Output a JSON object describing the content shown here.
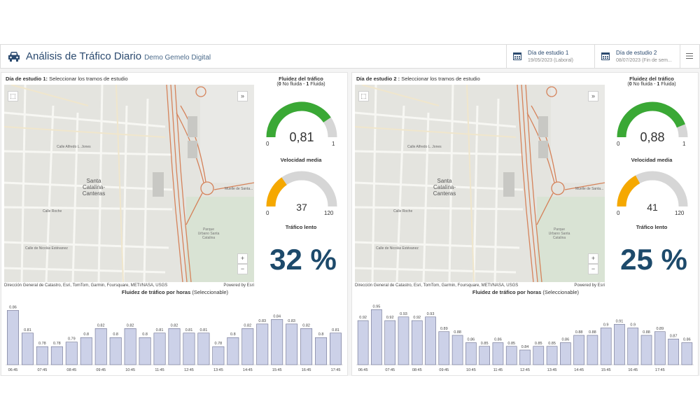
{
  "header": {
    "title": "Análisis de Tráfico Diario",
    "subtitle": "Demo Gemelo Digital",
    "date1_label": "Día de estudio 1",
    "date1_value": "19/05/2023 (Laboral)",
    "date2_label": "Día de estudio 2",
    "date2_value": "08/07/2023 (Fin de sem..."
  },
  "colors": {
    "accent": "#2b4a6f",
    "gauge_green": "#3aa835",
    "gauge_orange": "#f5a800",
    "gauge_track": "#d6d6d6",
    "bar_fill": "#ccd1e8",
    "bar_stroke": "#6b6f8e",
    "big_text": "#1d4a6b"
  },
  "panels": [
    {
      "title_bold": "Día de estudio 1:",
      "title_rest": " Seleccionar los tramos de estudio",
      "map_labels": {
        "district": "Santa\nCatalina-\nCanteras",
        "street1": "Calle Alfredo L. Jones",
        "street2": "Calle Roche",
        "street3": "Calle de Nicolás Estévanez",
        "park": "Parque\nUrbano Santa\nCatalina",
        "street4": "Muelle de Santa..."
      },
      "attribution": "Dirección General de Catastro, Esri, TomTom, Garmin, Foursquare, METI/NASA, USGS",
      "powered": "Powered by Esri",
      "fluidez_title": "Fluidez del tráfico",
      "fluidez_sub_no": "0",
      "fluidez_sub_no_txt": " No fluida - ",
      "fluidez_sub_si": "1",
      "fluidez_sub_si_txt": " Fluida)",
      "fluidez_value": "0,81",
      "fluidez_fraction": 0.81,
      "fluidez_min": "0",
      "fluidez_max": "1",
      "velocidad_title": "Velocidad media",
      "velocidad_value": "37",
      "velocidad_fraction": 0.308,
      "velocidad_min": "0",
      "velocidad_max": "120",
      "lento_title": "Tráfico lento",
      "lento_pct": "32 %",
      "chart_title_bold": "Fluidez de tráfico por horas",
      "chart_title_rest": " (Seleccionable)"
    },
    {
      "title_bold": "Día de estudio 2 :",
      "title_rest": " Seleccionar los tramos de estudio",
      "map_labels": {
        "district": "Santa\nCatalina-\nCanteras",
        "street1": "Calle Alfredo L. Jones",
        "street2": "Calle Roche",
        "street3": "Calle de Nicolás Estévanez",
        "park": "Parque\nUrbano Santa\nCatalina",
        "street4": "Muelle de Santa..."
      },
      "attribution": "Dirección General de Catastro, Esri, TomTom, Garmin, Foursquare, METI/NASA, USGS",
      "powered": "Powered by Esri",
      "fluidez_title": "Fluidez del tráfico",
      "fluidez_sub_no": "0",
      "fluidez_sub_no_txt": " No fluida - ",
      "fluidez_sub_si": "1",
      "fluidez_sub_si_txt": " Fluida)",
      "fluidez_value": "0,88",
      "fluidez_fraction": 0.88,
      "fluidez_min": "0",
      "fluidez_max": "1",
      "velocidad_title": "Velocidad media",
      "velocidad_value": "41",
      "velocidad_fraction": 0.342,
      "velocidad_min": "0",
      "velocidad_max": "120",
      "lento_title": "Tráfico lento",
      "lento_pct": "25 %",
      "chart_title_bold": "Fluidez de tráfico por horas",
      "chart_title_rest": " (Seleccionable)"
    }
  ],
  "chart_data": [
    {
      "type": "bar",
      "title": "Fluidez de tráfico por horas (Seleccionable)",
      "tick_labels": [
        "06:45",
        "07:45",
        "08:45",
        "09:45",
        "10:45",
        "11:45",
        "12:45",
        "13:45",
        "14:45",
        "15:45",
        "16:45",
        "17:45"
      ],
      "values": [
        0.86,
        0.81,
        0.78,
        0.78,
        0.79,
        0.8,
        0.82,
        0.8,
        0.82,
        0.8,
        0.81,
        0.82,
        0.81,
        0.81,
        0.78,
        0.8,
        0.82,
        0.83,
        0.84,
        0.83,
        0.82,
        0.8,
        0.81
      ],
      "ylim": [
        0.74,
        0.87
      ]
    },
    {
      "type": "bar",
      "title": "Fluidez de tráfico por horas (Seleccionable)",
      "tick_labels": [
        "06:45",
        "07:45",
        "08:45",
        "09:45",
        "10:45",
        "11:45",
        "12:45",
        "13:45",
        "14:45",
        "15:45",
        "16:45",
        "17:45"
      ],
      "values": [
        0.92,
        0.95,
        0.92,
        0.93,
        0.92,
        0.93,
        0.89,
        0.88,
        0.86,
        0.85,
        0.86,
        0.85,
        0.84,
        0.85,
        0.85,
        0.86,
        0.88,
        0.88,
        0.9,
        0.91,
        0.9,
        0.88,
        0.89,
        0.87,
        0.86
      ],
      "ylim": [
        0.8,
        0.96
      ]
    }
  ]
}
